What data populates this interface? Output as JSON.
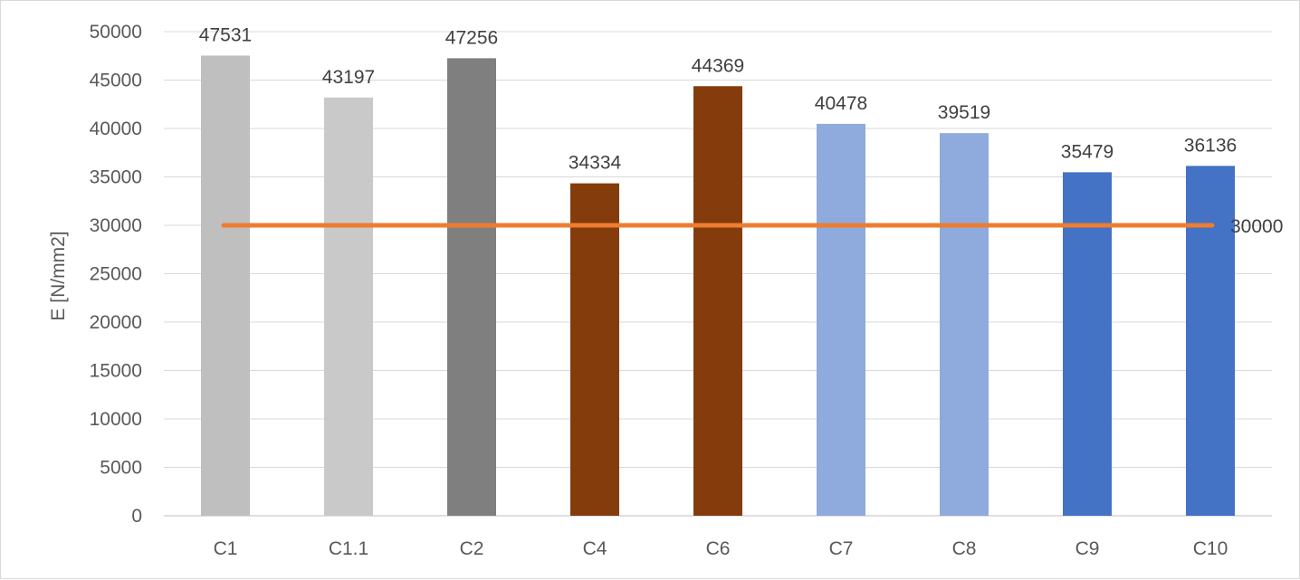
{
  "chart_data": {
    "type": "bar",
    "title": "",
    "xlabel": "",
    "ylabel": "E [N/mm2]",
    "ylim": [
      0,
      50000
    ],
    "yticks": [
      0,
      5000,
      10000,
      15000,
      20000,
      25000,
      30000,
      35000,
      40000,
      45000,
      50000
    ],
    "grid": true,
    "legend": "none",
    "categories": [
      "C1",
      "C1.1",
      "C2",
      "C4",
      "C6",
      "C7",
      "C8",
      "C9",
      "C10"
    ],
    "values": [
      47531,
      43197,
      47256,
      34334,
      44369,
      40478,
      39519,
      35479,
      36136
    ],
    "data_labels": [
      "47531",
      "43197",
      "47256",
      "34334",
      "44369",
      "40478",
      "39519",
      "35479",
      "36136"
    ],
    "bar_colors": [
      "#bfbfbf",
      "#c9c9c9",
      "#7f7f7f",
      "#843c0c",
      "#843c0c",
      "#8faadc",
      "#8faadc",
      "#4472c4",
      "#4472c4"
    ],
    "reference_line": {
      "type": "line",
      "value": 30000,
      "label": "30000",
      "color": "#ed7d31"
    }
  }
}
